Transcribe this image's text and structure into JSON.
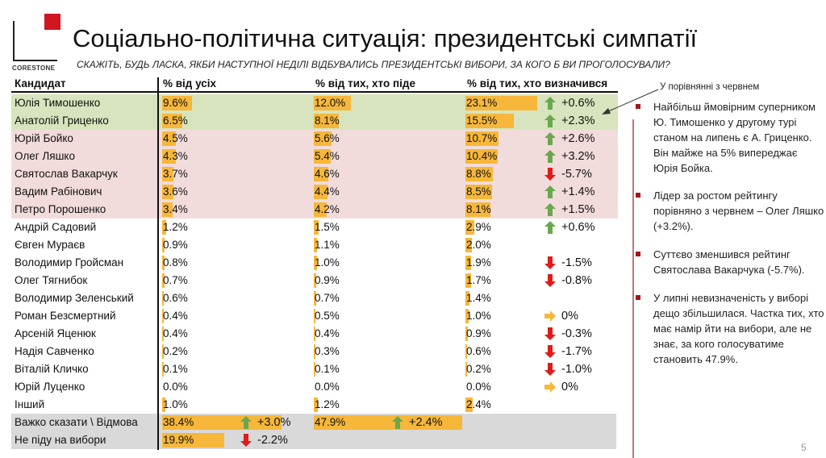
{
  "logo": {
    "text": "CORESTONE"
  },
  "title": "Соціально-політична ситуація: президентські симпатії",
  "subtitle": "СКАЖІТЬ, БУДЬ ЛАСКА, ЯКБИ НАСТУПНОЇ НЕДІЛІ ВІДБУВАЛИСЬ ПРЕЗИДЕНТСЬКІ ВИБОРИ, ЗА КОГО Б ВИ ПРОГОЛОСУВАЛИ?",
  "headers": [
    "Кандидат",
    "% від усіх",
    "% від тих, хто піде",
    "% від тих, хто визначився"
  ],
  "colors": {
    "green": "#d7e4bd",
    "pink": "#f2dcdb",
    "gray": "#d9d9d9",
    "bar": "#f6b73a",
    "up": "#6aa84f",
    "down": "#e01b1b",
    "flat": "#f6b73a"
  },
  "rows": [
    {
      "name": "Юлія Тимошенко",
      "all": "9.6%",
      "go": "12.0%",
      "decided": "23.1%",
      "change": "+0.6%",
      "dir": "up",
      "band": "green"
    },
    {
      "name": "Анатолій Гриценко",
      "all": "6.5%",
      "go": "8.1%",
      "decided": "15.5%",
      "change": "+2.3%",
      "dir": "up",
      "band": "green"
    },
    {
      "name": "Юрій Бойко",
      "all": "4.5%",
      "go": "5.6%",
      "decided": "10.7%",
      "change": "+2.6%",
      "dir": "up",
      "band": "pink"
    },
    {
      "name": "Олег Ляшко",
      "all": "4.3%",
      "go": "5.4%",
      "decided": "10.4%",
      "change": "+3.2%",
      "dir": "up",
      "band": "pink"
    },
    {
      "name": "Святослав Вакарчук",
      "all": "3.7%",
      "go": "4.6%",
      "decided": "8.8%",
      "change": "-5.7%",
      "dir": "down",
      "band": "pink"
    },
    {
      "name": "Вадим Рабінович",
      "all": "3.6%",
      "go": "4.4%",
      "decided": "8.5%",
      "change": "+1.4%",
      "dir": "up",
      "band": "pink"
    },
    {
      "name": "Петро Порошенко",
      "all": "3.4%",
      "go": "4.2%",
      "decided": "8.1%",
      "change": "+1.5%",
      "dir": "up",
      "band": "pink"
    },
    {
      "name": "Андрій Садовий",
      "all": "1.2%",
      "go": "1.5%",
      "decided": "2.9%",
      "change": "+0.6%",
      "dir": "up"
    },
    {
      "name": "Євген Мураєв",
      "all": "0.9%",
      "go": "1.1%",
      "decided": "2.0%"
    },
    {
      "name": "Володимир Гройсман",
      "all": "0.8%",
      "go": "1.0%",
      "decided": "1.9%",
      "change": "-1.5%",
      "dir": "down"
    },
    {
      "name": "Олег Тягнибок",
      "all": "0.7%",
      "go": "0.9%",
      "decided": "1.7%",
      "change": "-0.8%",
      "dir": "down"
    },
    {
      "name": "Володимир Зеленський",
      "all": "0.6%",
      "go": "0.7%",
      "decided": "1.4%"
    },
    {
      "name": "Роман Безсмертний",
      "all": "0.4%",
      "go": "0.5%",
      "decided": "1.0%",
      "change": "0%",
      "dir": "flat"
    },
    {
      "name": "Арсеній Яценюк",
      "all": "0.4%",
      "go": "0.4%",
      "decided": "0.9%",
      "change": "-0.3%",
      "dir": "down"
    },
    {
      "name": "Надія Савченко",
      "all": "0.2%",
      "go": "0.3%",
      "decided": "0.6%",
      "change": "-1.7%",
      "dir": "down"
    },
    {
      "name": "Віталій Кличко",
      "all": "0.1%",
      "go": "0.1%",
      "decided": "0.2%",
      "change": "-1.0%",
      "dir": "down"
    },
    {
      "name": "Юрій Луценко",
      "all": "0.0%",
      "go": "0.0%",
      "decided": "0.0%",
      "change": "0%",
      "dir": "flat"
    },
    {
      "name": "Інший",
      "all": "1.0%",
      "go": "1.2%",
      "decided": "2.4%"
    },
    {
      "name": "Важко сказати \\ Відмова",
      "all": "38.4%",
      "go": "47.9%",
      "all_change": "+3.0%",
      "all_dir": "up",
      "go_change": "+2.4%",
      "go_dir": "up",
      "band": "gray"
    },
    {
      "name": "Не піду на вибори",
      "all": "19.9%",
      "all_change": "-2.2%",
      "all_dir": "down",
      "band": "gray"
    }
  ],
  "notes": {
    "heading": "У порівнянні з червнем",
    "bullets": [
      "Найбільш ймовірним суперником Ю. Тимошенко у другому турі станом на липень є А. Гриценко. Він майже на 5% випереджає Юрія Бойка.",
      "Лідер за ростом рейтингу порівняно з червнем – Олег Ляшко (+3.2%).",
      "Суттєво зменшився рейтинг Святослава Вакарчука (-5.7%).",
      "У липні невизначеність у виборі дещо збільшилася. Частка тих, хто має намір йти на вибори, але не знає, за кого голосуватиме становить 47.9%."
    ]
  },
  "page_number": "5"
}
